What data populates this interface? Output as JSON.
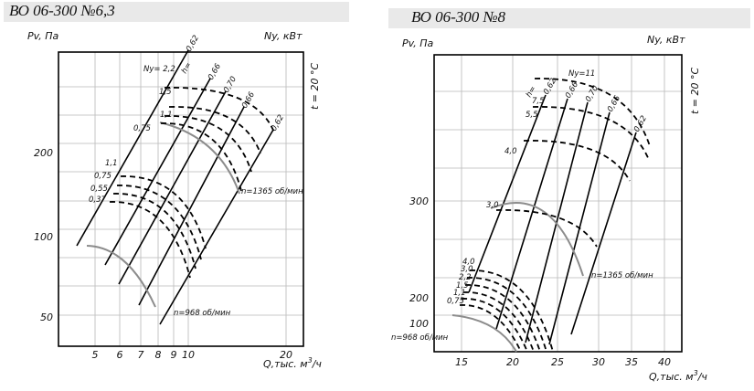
{
  "chart_data": [
    {
      "type": "line",
      "title": "ВО 06-300 №6,3",
      "ylabel": "Pv, Па",
      "ylabel_right": "Ny, кВт",
      "temperature_label": "t = 20 °C",
      "xlabel_text": "Q,тыс. м",
      "xlabel_sup": "3",
      "xlabel_unit": "/ч",
      "x_ticks": [
        "5",
        "6",
        "7",
        "8",
        "9",
        "10",
        "20"
      ],
      "y_ticks": [
        "50",
        "100",
        "200"
      ],
      "eff_label": "h=",
      "efficiency_lines": [
        "0,62",
        "0,66",
        "0,70",
        "0,66",
        "0,62"
      ],
      "rpm_high": "n=1365 об/мин",
      "rpm_low": "n=968 об/мин",
      "power_high": [
        "Ny= 2,2",
        "1,5",
        "1,1",
        "0,75"
      ],
      "power_low": [
        "1,1",
        "0,75",
        "0,55",
        "0,37"
      ]
    },
    {
      "type": "line",
      "title": "ВО 06-300 №8",
      "ylabel": "Pv, Па",
      "ylabel_right": "Ny, кВт",
      "temperature_label": "t = 20 °C",
      "xlabel_text": "Q,тыс. м",
      "xlabel_sup": "3",
      "xlabel_unit": "/ч",
      "x_ticks": [
        "15",
        "20",
        "25",
        "30",
        "35",
        "40"
      ],
      "y_ticks": [
        "100",
        "200",
        "300"
      ],
      "eff_label": "h=",
      "efficiency_lines": [
        "0,62",
        "0,66",
        "0,70",
        "0,66",
        "0,62"
      ],
      "rpm_high": "n=1365 об/мин",
      "rpm_low": "n=968 об/мин",
      "power_high": [
        "Ny=11",
        "7,5",
        "5,5",
        "4,0",
        "3,0"
      ],
      "power_low": [
        "4,0",
        "3,0",
        "2,2",
        "1,5",
        "1,1",
        "0,75"
      ]
    }
  ]
}
